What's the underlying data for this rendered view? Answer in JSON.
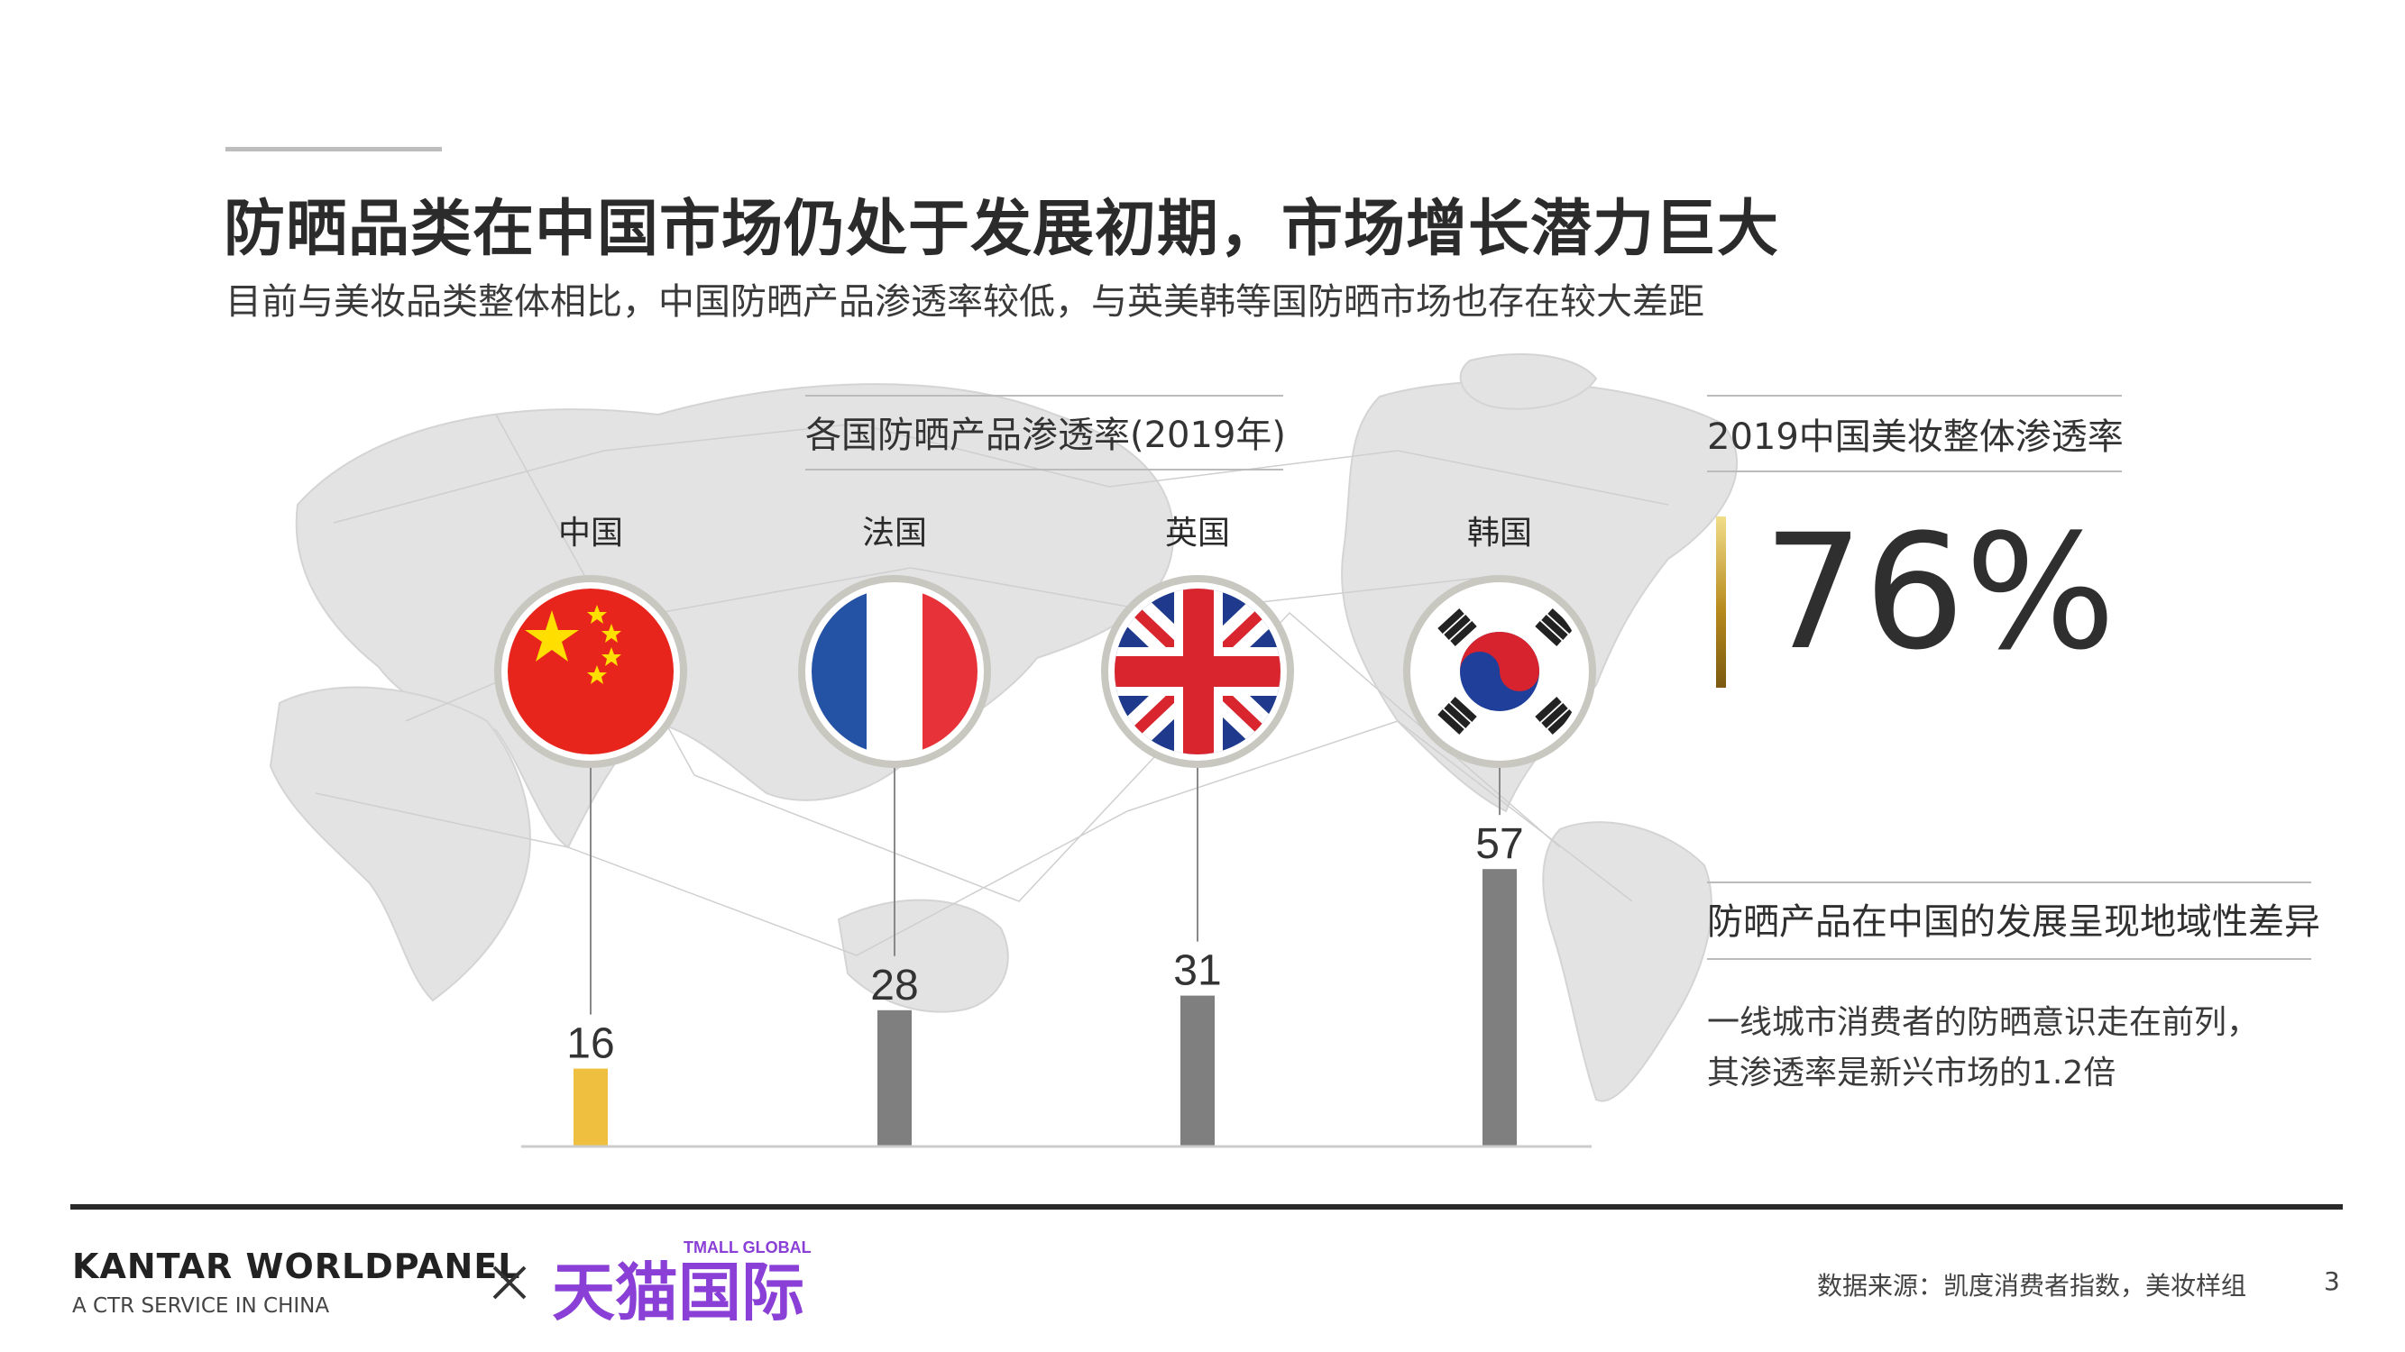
{
  "slide": {
    "title": "防晒品类在中国市场仍处于发展初期，市场增长潜力巨大",
    "subtitle": "目前与美妆品类整体相比，中国防晒产品渗透率较低，与英美韩等国防晒市场也存在较大差距"
  },
  "kpi": {
    "label": "2019中国美妆整体渗透率",
    "value": "76%"
  },
  "insight": {
    "title": "防晒产品在中国的发展呈现地域性差异",
    "line1": "一线城市消费者的防晒意识走在前列，",
    "line2": "其渗透率是新兴市场的1.2倍"
  },
  "footer": {
    "brand": "KANTAR WORLDPANEL",
    "tagline": "A CTR SERVICE IN CHINA",
    "partner_cn": "天猫国际",
    "partner_en": "TMALL GLOBAL",
    "source": "数据来源：凯度消费者指数，美妆样组",
    "page": "3"
  },
  "colors": {
    "highlight_bar": "#efc040",
    "bar": "#7f7f7f",
    "gold_accent": "#b68a1c",
    "tmall_purple": "#8a3fd6"
  },
  "chart_data": {
    "type": "bar",
    "title": "各国防晒产品渗透率(2019年)",
    "categories": [
      "中国",
      "法国",
      "英国",
      "韩国"
    ],
    "values": [
      16,
      28,
      31,
      57
    ],
    "highlight_index": 0,
    "flags": [
      "china-flag-icon",
      "france-flag-icon",
      "uk-flag-icon",
      "korea-flag-icon"
    ],
    "xlabel": "",
    "ylabel": "",
    "ylim": [
      0,
      60
    ],
    "grid": false
  }
}
